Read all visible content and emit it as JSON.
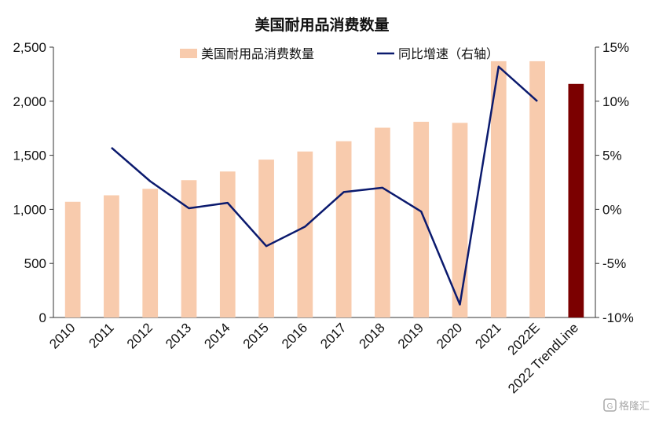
{
  "chart_data": {
    "type": "bar",
    "title": "美国耐用品消费数量",
    "categories": [
      "2010",
      "2011",
      "2012",
      "2013",
      "2014",
      "2015",
      "2016",
      "2017",
      "2018",
      "2019",
      "2020",
      "2021",
      "2022E",
      "2022 TrendLine"
    ],
    "series": [
      {
        "name": "美国耐用品消费数量",
        "type": "bar",
        "axis": "left",
        "color": "#f8cbad",
        "highlight_color": "#7b0000",
        "highlight_category": "2022 TrendLine",
        "values": [
          1070,
          1130,
          1190,
          1270,
          1350,
          1460,
          1535,
          1630,
          1755,
          1810,
          1800,
          2370,
          2370,
          2160
        ]
      },
      {
        "name": "同比增速（右轴）",
        "type": "line",
        "axis": "right",
        "unit": "%",
        "color": "#0b1a6e",
        "values": [
          null,
          5.7,
          2.6,
          0.1,
          0.6,
          -3.4,
          -1.6,
          1.6,
          2.0,
          -0.2,
          -8.8,
          13.2,
          10.0,
          null
        ]
      }
    ],
    "y_left": {
      "ylim": [
        0,
        2500
      ],
      "ticks": [
        "0",
        "500",
        "1,000",
        "1,500",
        "2,000",
        "2,500"
      ]
    },
    "y_right": {
      "ylim": [
        -10,
        15
      ],
      "ticks": [
        "-10%",
        "-5%",
        "0%",
        "5%",
        "10%",
        "15%"
      ]
    },
    "legend": {
      "placement": "top"
    },
    "grid": false
  },
  "watermark": {
    "icon": "gelonghui-logo-icon",
    "text": "格隆汇"
  }
}
